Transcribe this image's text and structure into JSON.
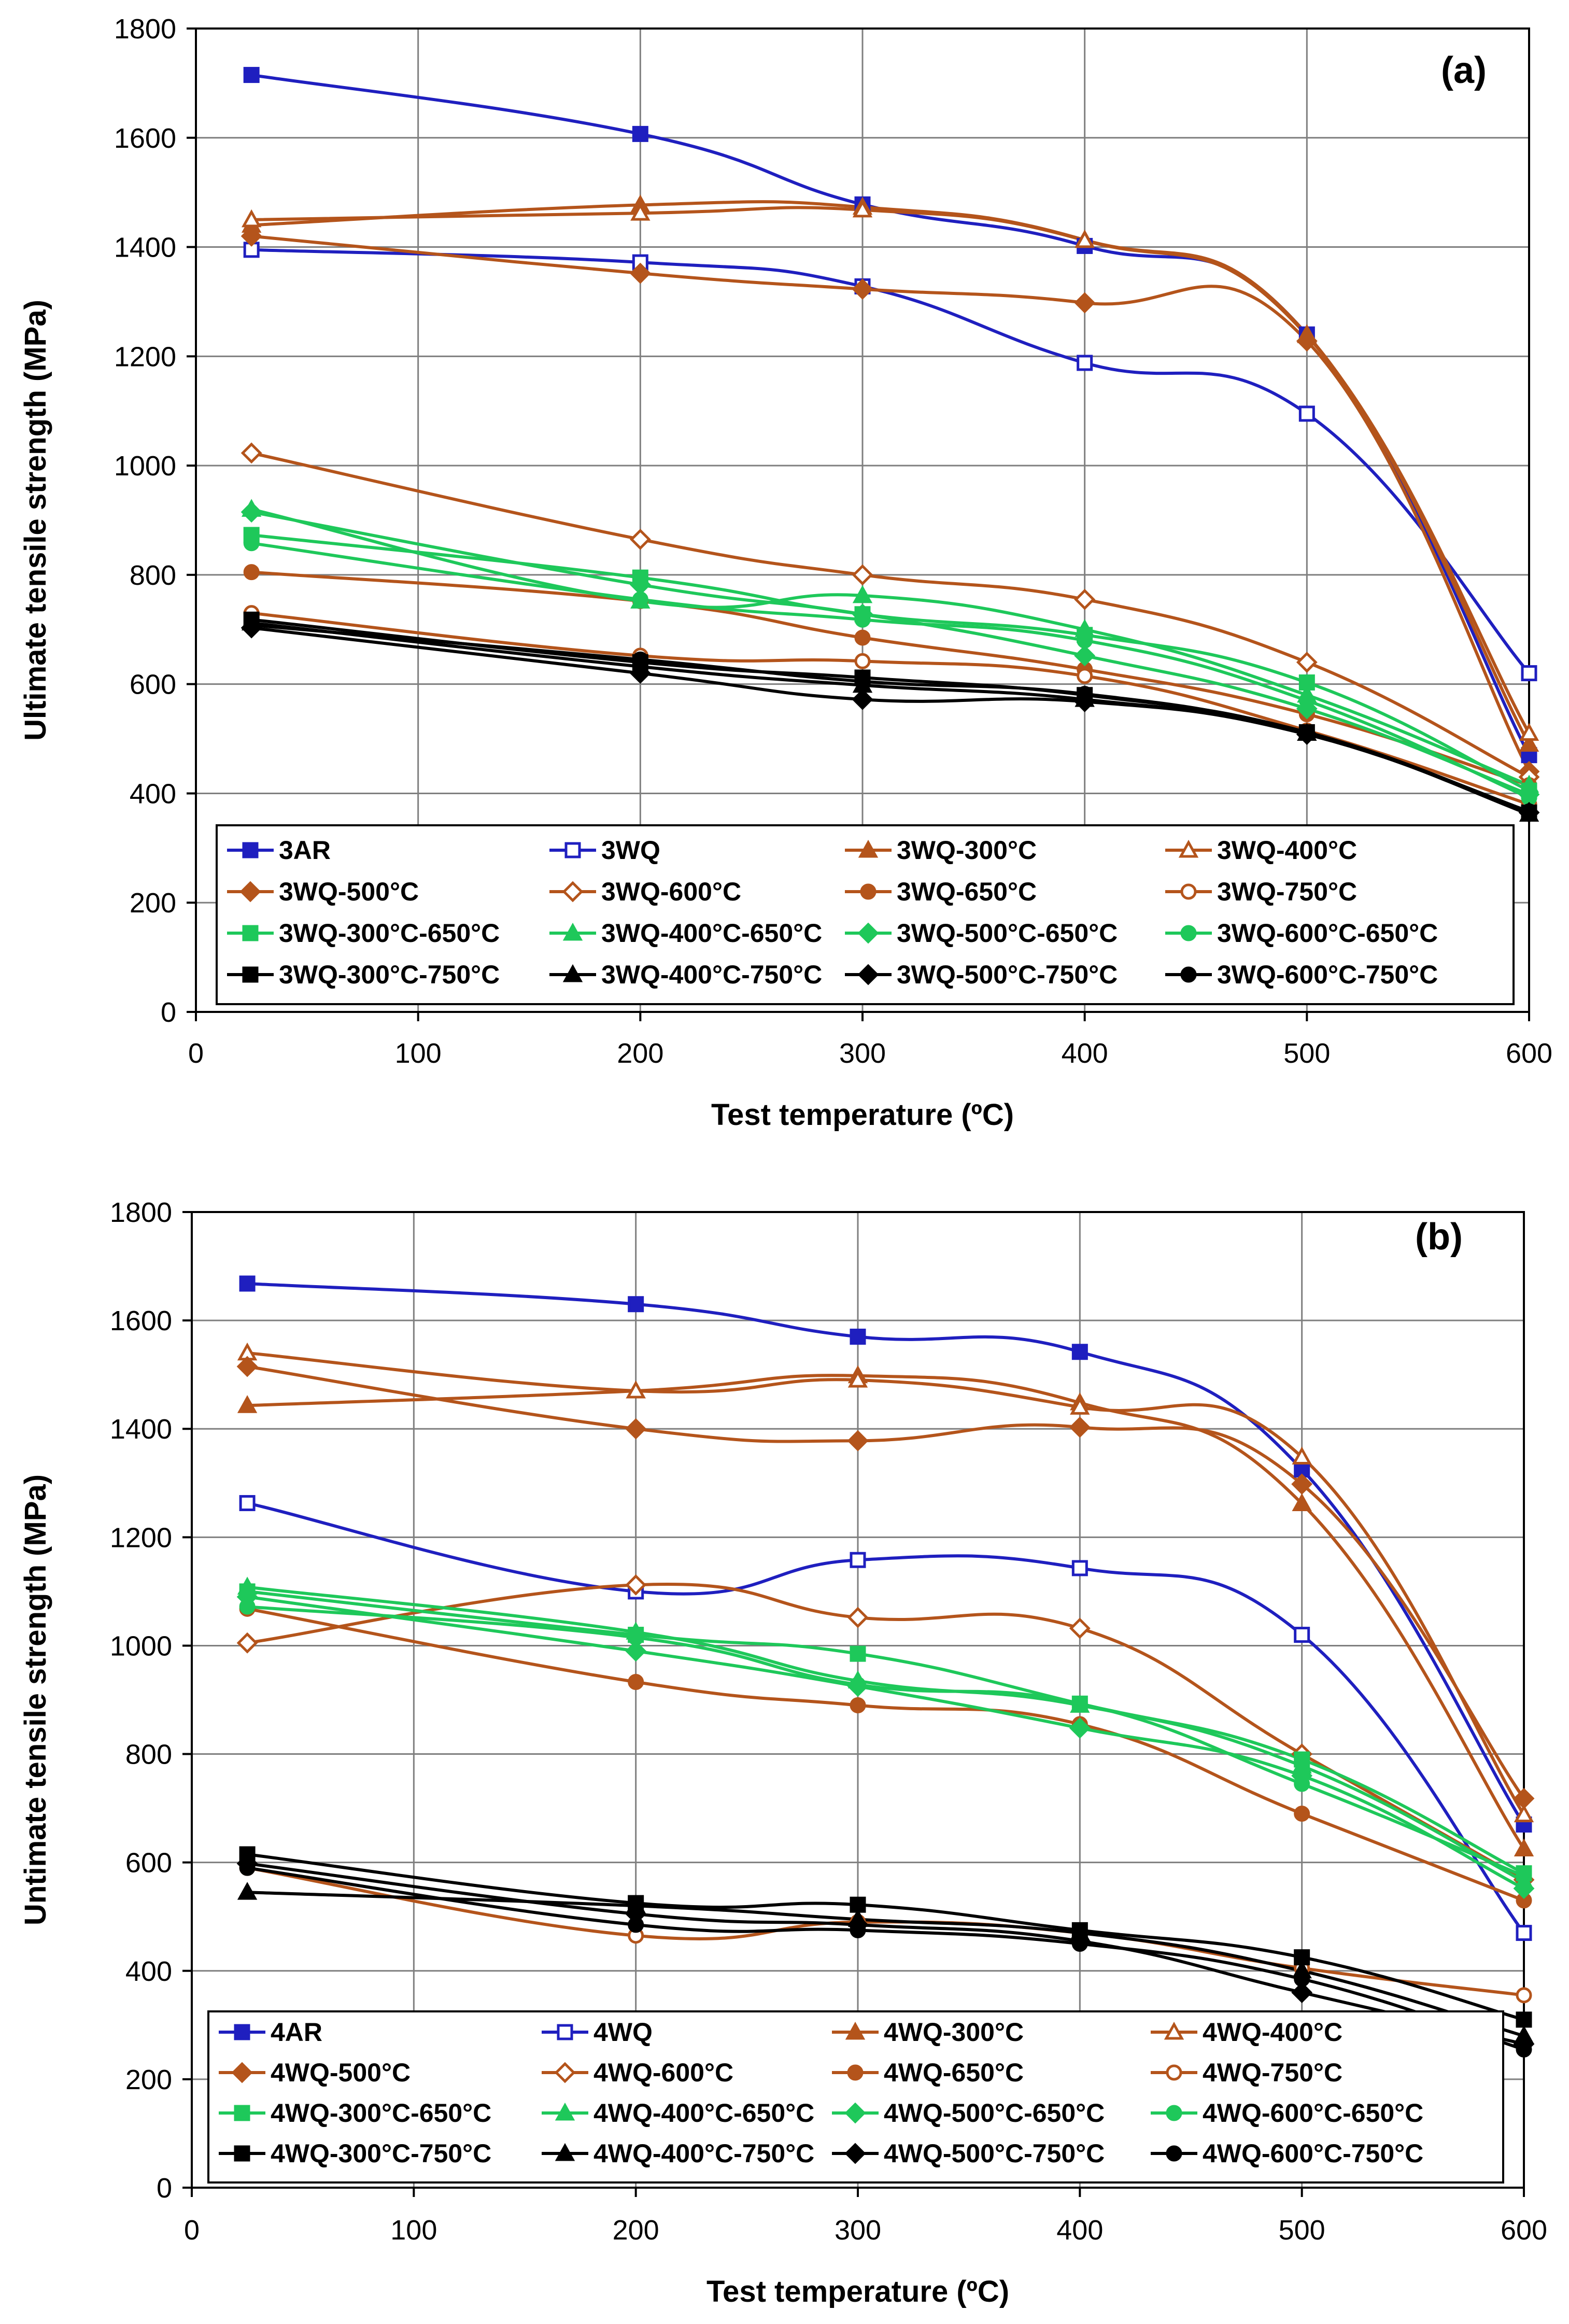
{
  "colors": {
    "blue": "#1f1fbf",
    "brown": "#b4541b",
    "green": "#1ec85a",
    "black": "#000000",
    "grid": "#7f7f7f"
  },
  "chart_data": [
    {
      "type": "line",
      "panel_label": "(a)",
      "xlabel": "Test temperature (ºC)",
      "ylabel": "Ultimate tensile strength (MPa)",
      "xlim": [
        0,
        600
      ],
      "ylim": [
        0,
        1800
      ],
      "xticks": [
        0,
        100,
        200,
        300,
        400,
        500,
        600
      ],
      "yticks": [
        0,
        200,
        400,
        600,
        800,
        1000,
        1200,
        1400,
        1600,
        1800
      ],
      "grid": true,
      "legend_position": "bottom",
      "x": [
        25,
        200,
        300,
        400,
        500,
        600
      ],
      "series": [
        {
          "name": "3AR",
          "color": "blue",
          "marker": "square",
          "filled": true,
          "values": [
            1715,
            1607,
            1478,
            1402,
            1240,
            470
          ]
        },
        {
          "name": "3WQ",
          "color": "blue",
          "marker": "square",
          "filled": false,
          "values": [
            1395,
            1372,
            1328,
            1188,
            1095,
            620
          ]
        },
        {
          "name": "3WQ-300°C",
          "color": "brown",
          "marker": "triangle",
          "filled": true,
          "values": [
            1440,
            1477,
            1473,
            1413,
            1240,
            490
          ]
        },
        {
          "name": "3WQ-400°C",
          "color": "brown",
          "marker": "triangle",
          "filled": false,
          "values": [
            1450,
            1462,
            1468,
            1412,
            1238,
            510
          ]
        },
        {
          "name": "3WQ-500°C",
          "color": "brown",
          "marker": "diamond",
          "filled": true,
          "values": [
            1420,
            1352,
            1323,
            1298,
            1228,
            440
          ]
        },
        {
          "name": "3WQ-600°C",
          "color": "brown",
          "marker": "diamond",
          "filled": false,
          "values": [
            1023,
            865,
            800,
            755,
            640,
            430
          ]
        },
        {
          "name": "3WQ-650°C",
          "color": "brown",
          "marker": "circle",
          "filled": true,
          "values": [
            805,
            752,
            685,
            627,
            545,
            415
          ]
        },
        {
          "name": "3WQ-750°C",
          "color": "brown",
          "marker": "circle",
          "filled": false,
          "values": [
            730,
            652,
            642,
            615,
            515,
            380
          ]
        },
        {
          "name": "3WQ-300°C-650°C",
          "color": "green",
          "marker": "square",
          "filled": true,
          "values": [
            873,
            795,
            728,
            690,
            603,
            405
          ]
        },
        {
          "name": "3WQ-400°C-650°C",
          "color": "green",
          "marker": "triangle",
          "filled": true,
          "values": [
            920,
            752,
            762,
            700,
            580,
            415
          ]
        },
        {
          "name": "3WQ-500°C-650°C",
          "color": "green",
          "marker": "diamond",
          "filled": true,
          "values": [
            915,
            782,
            728,
            652,
            555,
            398
          ]
        },
        {
          "name": "3WQ-600°C-650°C",
          "color": "green",
          "marker": "circle",
          "filled": true,
          "values": [
            858,
            755,
            718,
            680,
            570,
            392
          ]
        },
        {
          "name": "3WQ-300°C-750°C",
          "color": "black",
          "marker": "square",
          "filled": true,
          "values": [
            718,
            640,
            612,
            580,
            512,
            365
          ]
        },
        {
          "name": "3WQ-400°C-750°C",
          "color": "black",
          "marker": "triangle",
          "filled": true,
          "values": [
            712,
            632,
            598,
            572,
            510,
            362
          ]
        },
        {
          "name": "3WQ-500°C-750°C",
          "color": "black",
          "marker": "diamond",
          "filled": true,
          "values": [
            703,
            620,
            572,
            568,
            508,
            365
          ]
        },
        {
          "name": "3WQ-600°C-750°C",
          "color": "black",
          "marker": "circle",
          "filled": true,
          "values": [
            708,
            645,
            605,
            582,
            510,
            367
          ]
        }
      ]
    },
    {
      "type": "line",
      "panel_label": "(b)",
      "xlabel": "Test temperature (ºC)",
      "ylabel": "Untimate tensile strength (MPa)",
      "xlim": [
        0,
        600
      ],
      "ylim": [
        0,
        1800
      ],
      "xticks": [
        0,
        100,
        200,
        300,
        400,
        500,
        600
      ],
      "yticks": [
        0,
        200,
        400,
        600,
        800,
        1000,
        1200,
        1400,
        1600,
        1800
      ],
      "grid": true,
      "legend_position": "bottom",
      "x": [
        25,
        200,
        300,
        400,
        500,
        600
      ],
      "series": [
        {
          "name": "4AR",
          "color": "blue",
          "marker": "square",
          "filled": true,
          "values": [
            1668,
            1630,
            1570,
            1542,
            1325,
            670
          ]
        },
        {
          "name": "4WQ",
          "color": "blue",
          "marker": "square",
          "filled": false,
          "values": [
            1263,
            1100,
            1158,
            1143,
            1020,
            470
          ]
        },
        {
          "name": "4WQ-300°C",
          "color": "brown",
          "marker": "triangle",
          "filled": true,
          "values": [
            1443,
            1470,
            1498,
            1448,
            1262,
            625
          ]
        },
        {
          "name": "4WQ-400°C",
          "color": "brown",
          "marker": "triangle",
          "filled": false,
          "values": [
            1540,
            1470,
            1490,
            1440,
            1348,
            688
          ]
        },
        {
          "name": "4WQ-500°C",
          "color": "brown",
          "marker": "diamond",
          "filled": true,
          "values": [
            1515,
            1400,
            1378,
            1403,
            1298,
            718
          ]
        },
        {
          "name": "4WQ-600°C",
          "color": "brown",
          "marker": "diamond",
          "filled": false,
          "values": [
            1005,
            1112,
            1052,
            1032,
            800,
            568
          ]
        },
        {
          "name": "4WQ-650°C",
          "color": "brown",
          "marker": "circle",
          "filled": true,
          "values": [
            1068,
            933,
            890,
            855,
            690,
            530
          ]
        },
        {
          "name": "4WQ-750°C",
          "color": "brown",
          "marker": "circle",
          "filled": false,
          "values": [
            590,
            465,
            490,
            470,
            405,
            355
          ]
        },
        {
          "name": "4WQ-300°C-650°C",
          "color": "green",
          "marker": "square",
          "filled": true,
          "values": [
            1100,
            1020,
            985,
            893,
            790,
            580
          ]
        },
        {
          "name": "4WQ-400°C-650°C",
          "color": "green",
          "marker": "triangle",
          "filled": true,
          "values": [
            1108,
            1025,
            935,
            890,
            778,
            565
          ]
        },
        {
          "name": "4WQ-500°C-650°C",
          "color": "green",
          "marker": "diamond",
          "filled": true,
          "values": [
            1090,
            990,
            925,
            848,
            760,
            552
          ]
        },
        {
          "name": "4WQ-600°C-650°C",
          "color": "green",
          "marker": "circle",
          "filled": true,
          "values": [
            1072,
            1015,
            928,
            893,
            745,
            575
          ]
        },
        {
          "name": "4WQ-300°C-750°C",
          "color": "black",
          "marker": "square",
          "filled": true,
          "values": [
            615,
            525,
            522,
            475,
            425,
            310
          ]
        },
        {
          "name": "4WQ-400°C-750°C",
          "color": "black",
          "marker": "triangle",
          "filled": true,
          "values": [
            545,
            520,
            495,
            470,
            400,
            280
          ]
        },
        {
          "name": "4WQ-500°C-750°C",
          "color": "black",
          "marker": "diamond",
          "filled": true,
          "values": [
            598,
            505,
            485,
            455,
            360,
            265
          ]
        },
        {
          "name": "4WQ-600°C-750°C",
          "color": "black",
          "marker": "circle",
          "filled": true,
          "values": [
            590,
            485,
            475,
            450,
            385,
            255
          ]
        }
      ]
    }
  ]
}
